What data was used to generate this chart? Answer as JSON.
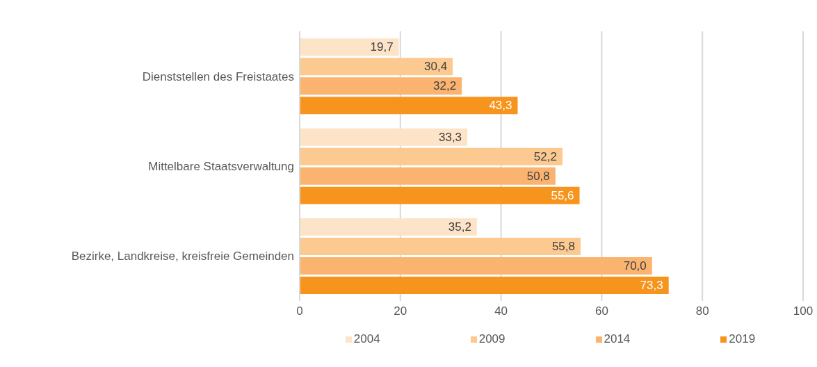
{
  "chart_data": {
    "type": "bar",
    "orientation": "horizontal",
    "categories": [
      "Dienststellen des Freistaates",
      "Mittelbare Staatsverwaltung",
      "Bezirke, Landkreise, kreisfreie Gemeinden"
    ],
    "series": [
      {
        "name": "2004",
        "color": "#fde4c8",
        "values": [
          19.7,
          33.3,
          35.2
        ]
      },
      {
        "name": "2009",
        "color": "#fcc990",
        "values": [
          30.4,
          52.2,
          55.8
        ]
      },
      {
        "name": "2014",
        "color": "#fbb370",
        "values": [
          32.2,
          50.8,
          70.0
        ]
      },
      {
        "name": "2019",
        "color": "#f7941d",
        "values": [
          43.3,
          55.6,
          73.3
        ]
      }
    ],
    "value_labels": [
      [
        "19,7",
        "33,3",
        "35,2"
      ],
      [
        "30,4",
        "52,2",
        "55,8"
      ],
      [
        "32,2",
        "50,8",
        "70,0"
      ],
      [
        "43,3",
        "55,6",
        "73,3"
      ]
    ],
    "xlim": [
      0,
      100
    ],
    "xticks": [
      0,
      20,
      40,
      60,
      80,
      100
    ],
    "grid": "x",
    "legend": "bottom"
  }
}
